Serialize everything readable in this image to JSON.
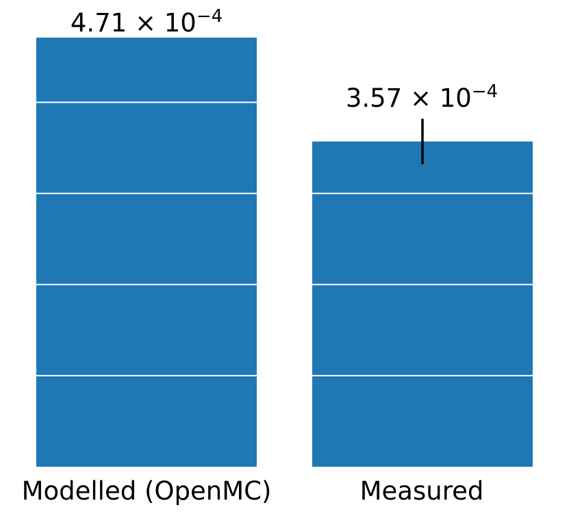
{
  "chart_data": {
    "type": "bar",
    "categories": [
      "Modelled (OpenMC)",
      "Measured"
    ],
    "values": [
      0.000471,
      0.000357
    ],
    "errors": [
      null,
      2.5e-05
    ],
    "data_labels": [
      {
        "mantissa": "4.71",
        "exponent": "−4"
      },
      {
        "mantissa": "3.57",
        "exponent": "−4"
      }
    ],
    "gridlines_y": [
      0.0001,
      0.0002,
      0.0003,
      0.0004
    ],
    "ylim": [
      0,
      0.000471
    ],
    "grid": true,
    "axes_visible": false,
    "colors": {
      "bar": "#1f77b4",
      "grid": "#ffffff",
      "errorbar": "#000000"
    }
  }
}
